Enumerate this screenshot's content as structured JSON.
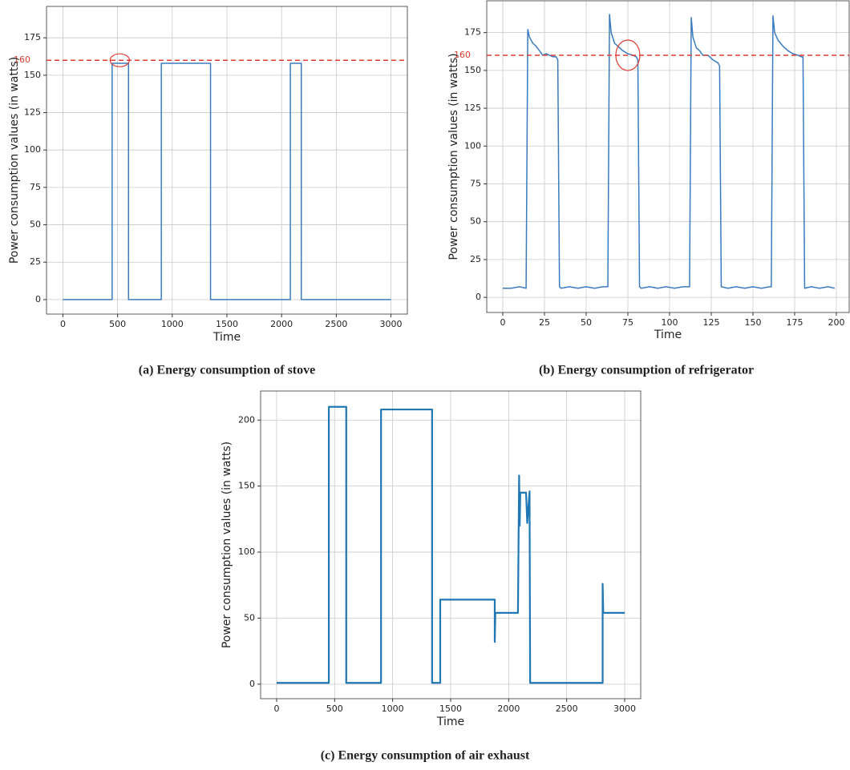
{
  "chart_data": [
    {
      "type": "line",
      "caption": "(a) Energy consumption of stove",
      "xlabel": "Time",
      "ylabel": "Power consumption values (in watts)",
      "color": "#3a7bbf",
      "grid": true,
      "x": [
        0,
        450,
        450,
        600,
        600,
        900,
        900,
        1350,
        1350,
        2080,
        2080,
        2180,
        2180,
        3000
      ],
      "values": [
        0,
        0,
        158,
        158,
        0,
        0,
        158,
        158,
        0,
        0,
        158,
        158,
        0,
        0
      ],
      "xlim": [
        -150,
        3150
      ],
      "ylim": [
        -9.7,
        196
      ],
      "xticks": [
        0,
        500,
        1000,
        1500,
        2000,
        2500,
        3000
      ],
      "yticks": [
        0,
        25,
        50,
        75,
        100,
        125,
        150,
        175
      ],
      "hline": {
        "value": 160,
        "label": "160",
        "color": "#e03c31"
      },
      "highlight": {
        "x": 520,
        "y": 160
      }
    },
    {
      "type": "line",
      "caption": "(b) Energy consumption of refrigerator",
      "xlabel": "Time",
      "ylabel": "Power consumption values (in watts)",
      "color": "#3a7bbf",
      "grid": true,
      "x": [
        0,
        5,
        10,
        14,
        15,
        16,
        18,
        20,
        22,
        24,
        26,
        28,
        30,
        32,
        33,
        34,
        35,
        40,
        45,
        50,
        55,
        60,
        63,
        64,
        65,
        67,
        70,
        72,
        75,
        78,
        80,
        81,
        82,
        83,
        88,
        93,
        98,
        103,
        108,
        112,
        113,
        114,
        116,
        118,
        120,
        123,
        126,
        129,
        130,
        131,
        135,
        140,
        145,
        150,
        155,
        160,
        161,
        162,
        163,
        165,
        168,
        171,
        174,
        177,
        179,
        180,
        181,
        185,
        190,
        195,
        199
      ],
      "values": [
        6,
        6,
        7,
        6,
        177,
        172,
        168,
        166,
        163,
        160,
        161,
        160,
        159,
        159,
        157,
        7,
        6,
        7,
        6,
        7,
        6,
        7,
        7,
        187,
        175,
        168,
        165,
        163,
        161,
        160,
        159,
        157,
        7,
        6,
        7,
        6,
        7,
        6,
        7,
        7,
        185,
        172,
        165,
        163,
        160,
        160,
        157,
        155,
        153,
        7,
        6,
        7,
        6,
        7,
        6,
        7,
        7,
        186,
        175,
        170,
        166,
        163,
        161,
        160,
        159,
        159,
        6,
        7,
        6,
        7,
        6
      ],
      "xlim": [
        -9.6,
        207.7
      ],
      "ylim": [
        -10,
        196
      ],
      "xticks": [
        0,
        25,
        50,
        75,
        100,
        125,
        150,
        175,
        200
      ],
      "yticks": [
        0,
        25,
        50,
        75,
        100,
        125,
        150,
        175
      ],
      "hline": {
        "value": 160,
        "label": "160",
        "color": "#e03c31"
      },
      "highlight": {
        "x": 75,
        "y": 160
      }
    },
    {
      "type": "line",
      "caption": "(c) Energy consumption of air exhaust",
      "xlabel": "Time",
      "ylabel": "Power consumption values (in watts)",
      "color": "#1f77b4",
      "grid": true,
      "x": [
        0,
        450,
        450,
        600,
        600,
        900,
        900,
        1340,
        1340,
        1410,
        1410,
        1600,
        1880,
        1880,
        1885,
        2080,
        2090,
        2095,
        2100,
        2150,
        2160,
        2180,
        2185,
        2810,
        2810,
        2815,
        3000
      ],
      "values": [
        1,
        1,
        210,
        210,
        1,
        1,
        208,
        208,
        1,
        1,
        64,
        64,
        64,
        32,
        54,
        54,
        158,
        120,
        145,
        145,
        122,
        146,
        1,
        1,
        76,
        54,
        54
      ],
      "xlim": [
        -138,
        3138
      ],
      "ylim": [
        -11,
        222
      ],
      "xticks": [
        0,
        500,
        1000,
        1500,
        2000,
        2500,
        3000
      ],
      "yticks": [
        0,
        50,
        100,
        150,
        200
      ]
    }
  ]
}
